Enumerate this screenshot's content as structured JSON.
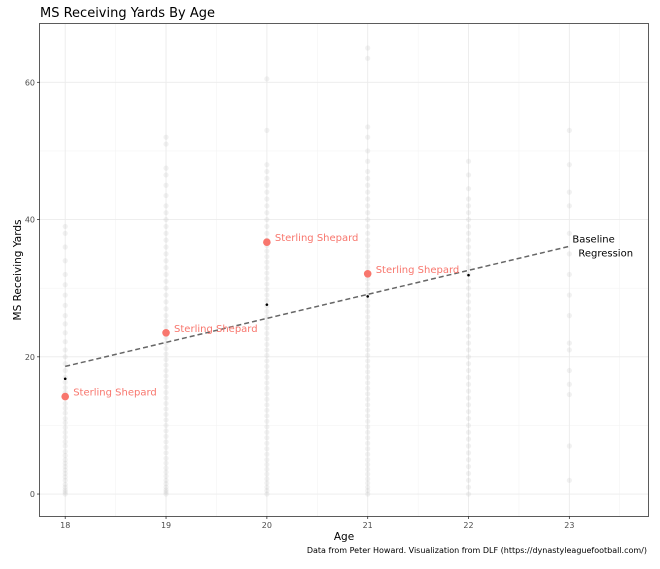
{
  "chart_data": {
    "type": "scatter",
    "title": "MS Receiving Yards By Age",
    "xlabel": "Age",
    "ylabel": "MS Receiving Yards",
    "caption": "Data from Peter Howard. Visualization from DLF (https://dynastyleaguefootball.com/)",
    "xlim": [
      17.75,
      23.78
    ],
    "ylim": [
      -3.2,
      68.5
    ],
    "x_ticks": [
      18,
      19,
      20,
      21,
      22,
      23
    ],
    "y_ticks": [
      0,
      20,
      40,
      60
    ],
    "grid": true,
    "background_points": {
      "color": "#bfbfbf",
      "groups": [
        {
          "age": 18,
          "values": [
            0,
            0.3,
            0.6,
            1,
            1.4,
            2,
            2.5,
            3,
            3.5,
            4,
            4.5,
            5,
            5.6,
            6.2,
            7,
            7.6,
            8.3,
            9,
            9.7,
            10.4,
            11,
            11.8,
            12.5,
            13.2,
            14,
            14.8,
            15.5,
            16.3,
            17,
            18,
            19,
            20,
            21,
            22.2,
            23.5,
            24.8,
            26,
            27.5,
            29,
            30.5,
            32,
            34,
            36,
            38,
            39
          ]
        },
        {
          "age": 19,
          "values": [
            0,
            0.3,
            0.6,
            1,
            1.5,
            2,
            2.6,
            3.2,
            3.8,
            4.5,
            5.2,
            6,
            6.8,
            7.6,
            8.4,
            9.2,
            10,
            10.8,
            11.6,
            12.4,
            13.2,
            14,
            14.8,
            15.6,
            16.4,
            17.2,
            18,
            18.8,
            19.6,
            20.4,
            21.2,
            22,
            22.8,
            23.6,
            24.4,
            25.2,
            26,
            27,
            28,
            29,
            30,
            31,
            32,
            33,
            34,
            35,
            36,
            37,
            38,
            39,
            40,
            41,
            42,
            43.5,
            45,
            46.5,
            47.5,
            51,
            52
          ]
        },
        {
          "age": 20,
          "values": [
            0,
            0.5,
            1,
            1.6,
            2.2,
            2.9,
            3.6,
            4.3,
            5,
            5.8,
            6.6,
            7.4,
            8.2,
            9,
            9.8,
            10.6,
            11.4,
            12.2,
            13,
            13.8,
            14.6,
            15.4,
            16.2,
            17,
            17.8,
            18.6,
            19.4,
            20.2,
            21,
            21.8,
            22.6,
            23.4,
            24.2,
            25,
            25.8,
            26.6,
            27.4,
            28.2,
            29,
            29.8,
            30.6,
            31.4,
            32.2,
            33,
            33.8,
            34.6,
            35.4,
            36.2,
            37,
            38,
            39,
            40,
            41,
            42,
            43,
            44,
            45,
            46,
            47,
            48,
            53,
            60.5
          ]
        },
        {
          "age": 21,
          "values": [
            0,
            0.5,
            1,
            1.6,
            2.2,
            2.9,
            3.6,
            4.3,
            5,
            5.8,
            6.6,
            7.4,
            8.2,
            9,
            9.8,
            10.6,
            11.4,
            12.2,
            13,
            13.8,
            14.6,
            15.4,
            16.2,
            17,
            17.8,
            18.6,
            19.4,
            20.2,
            21,
            21.8,
            22.6,
            23.4,
            24.2,
            25,
            25.8,
            26.6,
            27.4,
            28.2,
            29,
            29.8,
            30.6,
            31.4,
            32.2,
            33,
            33.8,
            34.6,
            35.4,
            36.2,
            37,
            38,
            39,
            40,
            41,
            42,
            43,
            44,
            45,
            46,
            47,
            48.5,
            50,
            52,
            53.5,
            63.5,
            65
          ]
        },
        {
          "age": 22,
          "values": [
            0,
            1,
            2,
            3,
            4,
            5,
            6,
            7,
            8,
            9,
            10,
            11,
            12,
            13,
            14,
            15,
            16,
            17,
            18,
            19,
            20,
            21,
            22,
            23,
            24,
            25,
            26,
            27,
            28,
            29,
            30,
            31,
            32,
            33,
            34,
            35,
            36,
            37,
            38,
            39,
            40,
            41,
            42,
            43,
            44.5,
            46.5,
            48.5
          ]
        },
        {
          "age": 23,
          "values": [
            2,
            7,
            14.5,
            16,
            18,
            21,
            22,
            26,
            29,
            32,
            35,
            38,
            42,
            44,
            48,
            53
          ]
        }
      ]
    },
    "age_means": {
      "color": "#000000",
      "points": [
        {
          "age": 18,
          "value": 16.8
        },
        {
          "age": 19,
          "value": 23.5
        },
        {
          "age": 20,
          "value": 27.6
        },
        {
          "age": 21,
          "value": 28.8
        },
        {
          "age": 22,
          "value": 31.9
        }
      ]
    },
    "highlight_series": {
      "name": "Sterling Shepard",
      "color": "#f8766d",
      "points": [
        {
          "age": 18,
          "value": 14.2
        },
        {
          "age": 19,
          "value": 23.5
        },
        {
          "age": 20,
          "value": 36.7
        },
        {
          "age": 21,
          "value": 32.1
        }
      ]
    },
    "regression": {
      "name": "Baseline Regression",
      "label_lines": [
        "Baseline",
        "Regression"
      ],
      "x_start": 18,
      "y_start": 18.6,
      "x_end": 23,
      "y_end": 36.1,
      "style": "dashed",
      "color": "#666666"
    }
  }
}
